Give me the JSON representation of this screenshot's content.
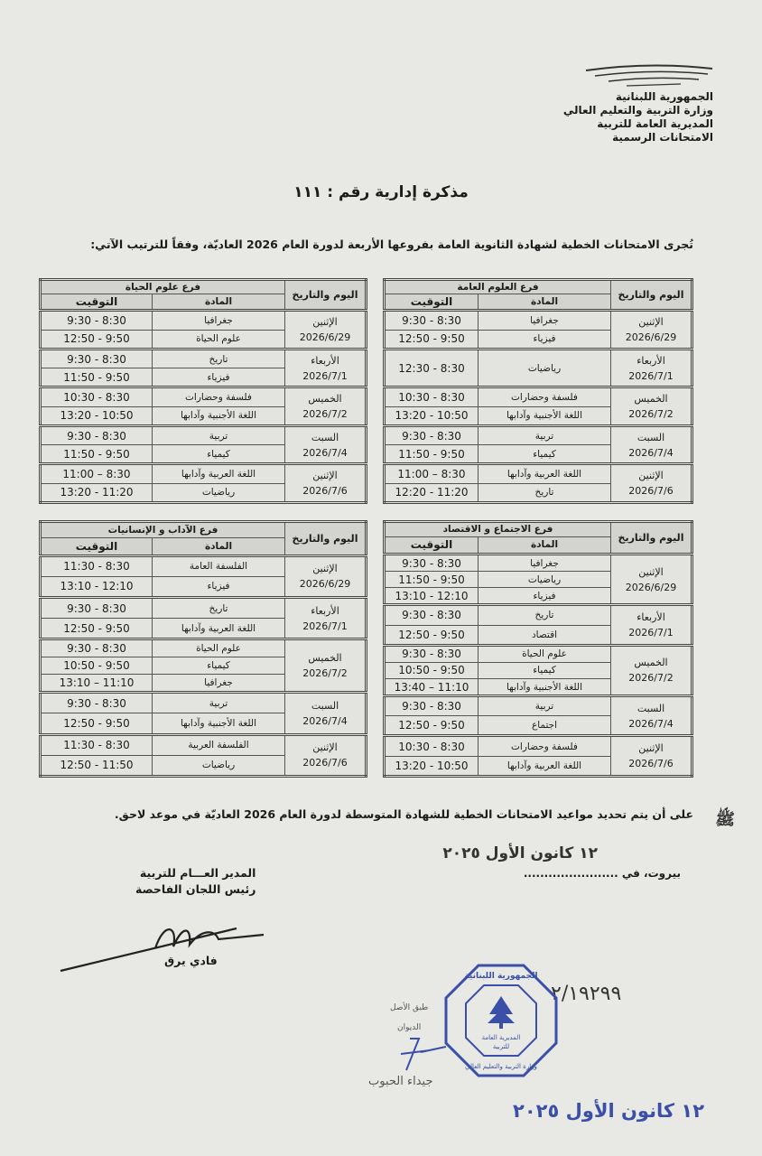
{
  "header": {
    "ministry_lines": [
      "الجمهورية اللبنانية",
      "وزارة التربية والتعليم العالي",
      "المديرية العامة للتربية",
      "الامتحانات الرسمية"
    ],
    "title": "مذكرة إدارية رقم : ١١١",
    "intro": "تُجرى الامتحانات الخطية لشهادة الثانوية العامة بفروعها الأربعة لدورة العام 2026 العاديّة، وفقاً للترتيب الآتي:"
  },
  "columns": {
    "day": "اليوم والتاريخ",
    "subject": "المادة",
    "time": "التوقيت"
  },
  "tables": [
    {
      "branch": "فرع العلوم العامة",
      "days": [
        {
          "day": "الإثنين",
          "date": "2026/6/29",
          "rows": [
            {
              "subject": "جغرافيا",
              "time": "9:30 - 8:30"
            },
            {
              "subject": "فيزياء",
              "time": "12:50 - 9:50"
            }
          ]
        },
        {
          "day": "الأربعاء",
          "date": "2026/7/1",
          "rows": [
            {
              "subject": "رياضيات",
              "time": "12:30 - 8:30"
            }
          ]
        },
        {
          "day": "الخميس",
          "date": "2026/7/2",
          "rows": [
            {
              "subject": "فلسفة وحضارات",
              "time": "10:30 - 8:30"
            },
            {
              "subject": "اللغة الأجنبية وآدابها",
              "time": "13:20 - 10:50"
            }
          ]
        },
        {
          "day": "السبت",
          "date": "2026/7/4",
          "rows": [
            {
              "subject": "تربية",
              "time": "9:30 - 8:30"
            },
            {
              "subject": "كيمياء",
              "time": "11:50 - 9:50"
            }
          ]
        },
        {
          "day": "الإثنين",
          "date": "2026/7/6",
          "rows": [
            {
              "subject": "اللغة العربية وآدابها",
              "time": "11:00 – 8:30"
            },
            {
              "subject": "تاريخ",
              "time": "12:20 - 11:20"
            }
          ]
        }
      ]
    },
    {
      "branch": "فرع علوم الحياة",
      "days": [
        {
          "day": "الإثنين",
          "date": "2026/6/29",
          "rows": [
            {
              "subject": "جغرافيا",
              "time": "9:30 - 8:30"
            },
            {
              "subject": "علوم الحياة",
              "time": "12:50 - 9:50"
            }
          ]
        },
        {
          "day": "الأربعاء",
          "date": "2026/7/1",
          "rows": [
            {
              "subject": "تاريخ",
              "time": "9:30 - 8:30"
            },
            {
              "subject": "فيزياء",
              "time": "11:50 - 9:50"
            }
          ]
        },
        {
          "day": "الخميس",
          "date": "2026/7/2",
          "rows": [
            {
              "subject": "فلسفة وحضارات",
              "time": "10:30 - 8:30"
            },
            {
              "subject": "اللغة الأجنبية وآدابها",
              "time": "13:20 - 10:50"
            }
          ]
        },
        {
          "day": "السبت",
          "date": "2026/7/4",
          "rows": [
            {
              "subject": "تربية",
              "time": "9:30 - 8:30"
            },
            {
              "subject": "كيمياء",
              "time": "11:50 - 9:50"
            }
          ]
        },
        {
          "day": "الإثنين",
          "date": "2026/7/6",
          "rows": [
            {
              "subject": "اللغة العربية وآدابها",
              "time": "11:00 – 8:30"
            },
            {
              "subject": "رياضيات",
              "time": "13:20 - 11:20"
            }
          ]
        }
      ]
    },
    {
      "branch": "فرع الاجتماع و الاقتصاد",
      "days": [
        {
          "day": "الإثنين",
          "date": "2026/6/29",
          "rows": [
            {
              "subject": "جغرافيا",
              "time": "9:30 - 8:30"
            },
            {
              "subject": "رياضيات",
              "time": "11:50 - 9:50"
            },
            {
              "subject": "فيزياء",
              "time": "13:10 - 12:10"
            }
          ]
        },
        {
          "day": "الأربعاء",
          "date": "2026/7/1",
          "rows": [
            {
              "subject": "تاريخ",
              "time": "9:30 - 8:30"
            },
            {
              "subject": "اقتصاد",
              "time": "12:50 - 9:50"
            }
          ]
        },
        {
          "day": "الخميس",
          "date": "2026/7/2",
          "rows": [
            {
              "subject": "علوم الحياة",
              "time": "9:30 - 8:30"
            },
            {
              "subject": "كيمياء",
              "time": "10:50 - 9:50"
            },
            {
              "subject": "اللغة الأجنبية وآدابها",
              "time": "13:40 – 11:10"
            }
          ]
        },
        {
          "day": "السبت",
          "date": "2026/7/4",
          "rows": [
            {
              "subject": "تربية",
              "time": "9:30 - 8:30"
            },
            {
              "subject": "اجتماع",
              "time": "12:50 - 9:50"
            }
          ]
        },
        {
          "day": "الإثنين",
          "date": "2026/7/6",
          "rows": [
            {
              "subject": "فلسفة وحضارات",
              "time": "10:30 - 8:30"
            },
            {
              "subject": "اللغة العربية وآدابها",
              "time": "13:20 - 10:50"
            }
          ]
        }
      ]
    },
    {
      "branch": "فرع الآداب و الإنسانيات",
      "days": [
        {
          "day": "الإثنين",
          "date": "2026/6/29",
          "rows": [
            {
              "subject": "الفلسفة العامة",
              "time": "11:30 - 8:30"
            },
            {
              "subject": "فيزياء",
              "time": "13:10 - 12:10"
            }
          ]
        },
        {
          "day": "الأربعاء",
          "date": "2026/7/1",
          "rows": [
            {
              "subject": "تاريخ",
              "time": "9:30 - 8:30"
            },
            {
              "subject": "اللغة العربية وآدابها",
              "time": "12:50 - 9:50"
            }
          ]
        },
        {
          "day": "الخميس",
          "date": "2026/7/2",
          "rows": [
            {
              "subject": "علوم الحياة",
              "time": "9:30 - 8:30"
            },
            {
              "subject": "كيمياء",
              "time": "10:50 - 9:50"
            },
            {
              "subject": "جغرافيا",
              "time": "13:10 – 11:10"
            }
          ]
        },
        {
          "day": "السبت",
          "date": "2026/7/4",
          "rows": [
            {
              "subject": "تربية",
              "time": "9:30 - 8:30"
            },
            {
              "subject": "اللغة الأجنبية وآدابها",
              "time": "12:50 - 9:50"
            }
          ]
        },
        {
          "day": "الإثنين",
          "date": "2026/7/6",
          "rows": [
            {
              "subject": "الفلسفة العربية",
              "time": "11:30 - 8:30"
            },
            {
              "subject": "رياضيات",
              "time": "12:50 - 11:50"
            }
          ]
        }
      ]
    }
  ],
  "footer": {
    "note": "على أن يتم تحديد مواعيد الامتحانات الخطية للشهادة المتوسطة لدورة العام 2026 العاديّة في موعد لاحق.",
    "note_mark": "ﷺ",
    "place": "بيروت، في .......................",
    "place_date": "١٢ كانون الأول ٢٠٢٥",
    "director_title": "المدير العـــام للتربية",
    "director_role": "رئيس اللجان الفاحصة",
    "director_name": "فادي يرق",
    "reference": "٢/١٩٢٩٩",
    "copy_label": "طبق الأصل",
    "office_label": "الديوان",
    "clerk_name": "جيداء الحبوب",
    "stamp_date": "١٢ كانون الأول ٢٠٢٥",
    "stamp_text": [
      "الجمهورية اللبنانية",
      "المديرية العامة للتربية",
      "وزارة التربية والتعليم العالي"
    ],
    "stamp_color": "#3a4fa8"
  }
}
